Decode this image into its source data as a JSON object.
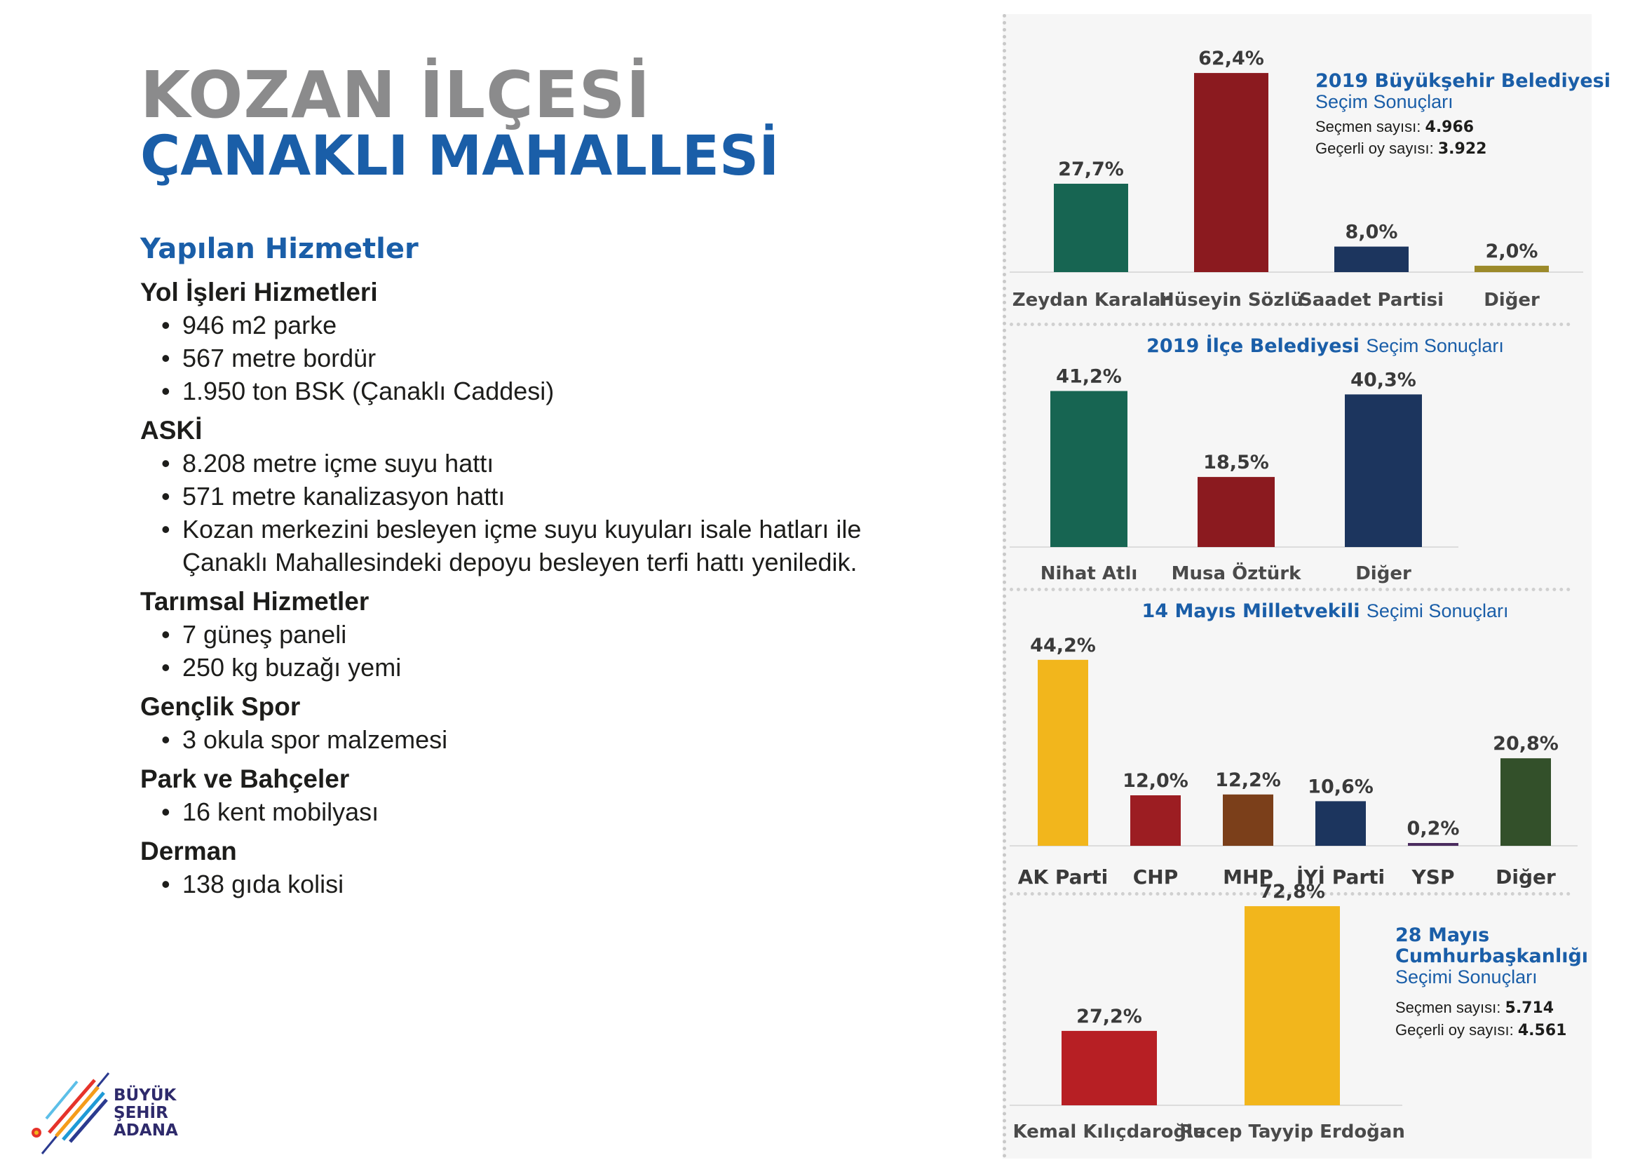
{
  "title": {
    "line1": "KOZAN İLÇESİ",
    "line2": "ÇANAKLI MAHALLESİ"
  },
  "services": {
    "heading": "Yapılan Hizmetler",
    "categories": [
      {
        "name": "Yol İşleri Hizmetleri",
        "items": [
          "946 m2 parke",
          "567 metre bordür",
          "1.950 ton BSK (Çanaklı Caddesi)"
        ]
      },
      {
        "name": "ASKİ",
        "items": [
          "8.208 metre içme suyu hattı",
          "571 metre kanalizasyon hattı",
          "Kozan merkezini besleyen içme suyu kuyuları isale hatları ile Çanaklı Mahallesindeki depoyu besleyen terfi hattı yeniledik."
        ]
      },
      {
        "name": "Tarımsal Hizmetler",
        "items": [
          "7 güneş paneli",
          "250 kg buzağı yemi"
        ]
      },
      {
        "name": "Gençlik Spor",
        "items": [
          "3 okula spor malzemesi"
        ]
      },
      {
        "name": "Park ve Bahçeler",
        "items": [
          "16 kent mobilyası"
        ]
      },
      {
        "name": "Derman",
        "items": [
          "138 gıda kolisi"
        ]
      }
    ]
  },
  "logo": {
    "line1": "BÜYÜK",
    "line2": "ŞEHİR",
    "line3": "ADANA"
  },
  "chart_data": [
    {
      "type": "bar",
      "title_bold": "2019 Büyükşehir Belediyesi",
      "title_regular": "Seçim Sonuçları",
      "voters_label": "Seçmen sayısı:",
      "voters_value": "4.966",
      "valid_label": "Geçerli oy sayısı:",
      "valid_value": "3.922",
      "categories": [
        "Zeydan Karalar",
        "Hüseyin Sözlü",
        "Saadet Partisi",
        "Diğer"
      ],
      "values": [
        27.7,
        62.4,
        8.0,
        2.0
      ],
      "labels": [
        "27,7%",
        "62,4%",
        "8,0%",
        "2,0%"
      ],
      "colors": [
        "#176552",
        "#8b1a1f",
        "#1c355e",
        "#9c8a2a"
      ]
    },
    {
      "type": "bar",
      "title_bold": "2019 İlçe Belediyesi",
      "title_regular": "Seçim Sonuçları",
      "categories": [
        "Nihat Atlı",
        "Musa Öztürk",
        "Diğer"
      ],
      "values": [
        41.2,
        18.5,
        40.3
      ],
      "labels": [
        "41,2%",
        "18,5%",
        "40,3%"
      ],
      "colors": [
        "#176552",
        "#8b1a1f",
        "#1c355e"
      ]
    },
    {
      "type": "bar",
      "title_bold": "14 Mayıs Milletvekili",
      "title_regular": "Seçimi Sonuçları",
      "categories": [
        "AK Parti",
        "CHP",
        "MHP",
        "İYİ Parti",
        "YSP",
        "Diğer"
      ],
      "values": [
        44.2,
        12.0,
        12.2,
        10.6,
        0.2,
        20.8
      ],
      "labels": [
        "44,2%",
        "12,0%",
        "12,2%",
        "10,6%",
        "0,2%",
        "20,8%"
      ],
      "colors": [
        "#f2b61c",
        "#9c1d22",
        "#7b3f1a",
        "#1c355e",
        "#4a2b5e",
        "#33502a"
      ]
    },
    {
      "type": "bar",
      "title_bold1": "28 Mayıs",
      "title_bold2": "Cumhurbaşkanlığı",
      "title_regular": "Seçimi Sonuçları",
      "voters_label": "Seçmen sayısı:",
      "voters_value": "5.714",
      "valid_label": "Geçerli oy sayısı:",
      "valid_value": "4.561",
      "categories": [
        "Kemal Kılıçdaroğlu",
        "Recep Tayyip Erdoğan"
      ],
      "values": [
        27.2,
        72.8
      ],
      "labels": [
        "27,2%",
        "72,8%"
      ],
      "colors": [
        "#b71f24",
        "#f2b61c"
      ]
    }
  ]
}
